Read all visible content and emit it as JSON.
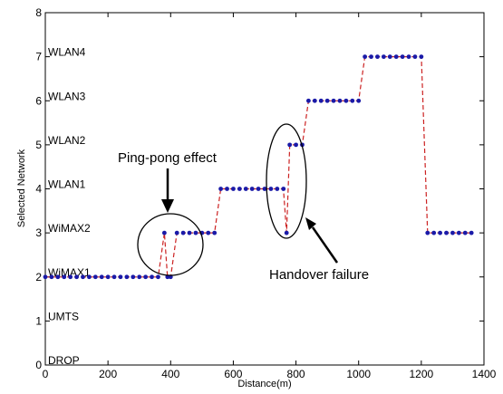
{
  "chart_data": {
    "type": "line",
    "xlabel": "Distance(m)",
    "ylabel": "Selected Network",
    "xlim": [
      0,
      1400
    ],
    "ylim": [
      0,
      8
    ],
    "xticks": [
      "0",
      "200",
      "400",
      "600",
      "800",
      "1000",
      "1200",
      "1400"
    ],
    "yticks": [
      "0",
      "1",
      "2",
      "3",
      "4",
      "5",
      "6",
      "7",
      "8"
    ],
    "network_labels": [
      "DROP",
      "UMTS",
      "WiMAX1",
      "WiMAX2",
      "WLAN1",
      "WLAN2",
      "WLAN3",
      "WLAN4"
    ],
    "grid": false,
    "colors": {
      "points": "#1a1aa8",
      "line": "#cc2222"
    },
    "series": [
      {
        "x": [
          0,
          20,
          40,
          60,
          80,
          100,
          120,
          140,
          160,
          180,
          200,
          220,
          240,
          260,
          280,
          300,
          320,
          340,
          360,
          380,
          390,
          400,
          420,
          440,
          460,
          480,
          500,
          520,
          540,
          560,
          580,
          600,
          620,
          640,
          660,
          680,
          700,
          720,
          740,
          760,
          770,
          780,
          800,
          820,
          840,
          860,
          880,
          900,
          920,
          940,
          960,
          980,
          1000,
          1020,
          1040,
          1060,
          1080,
          1100,
          1120,
          1140,
          1160,
          1180,
          1200,
          1220,
          1240,
          1260,
          1280,
          1300,
          1320,
          1340,
          1360
        ],
        "y": [
          2,
          2,
          2,
          2,
          2,
          2,
          2,
          2,
          2,
          2,
          2,
          2,
          2,
          2,
          2,
          2,
          2,
          2,
          2,
          3,
          2,
          2,
          3,
          3,
          3,
          3,
          3,
          3,
          3,
          4,
          4,
          4,
          4,
          4,
          4,
          4,
          4,
          4,
          4,
          4,
          3,
          5,
          5,
          5,
          6,
          6,
          6,
          6,
          6,
          6,
          6,
          6,
          6,
          7,
          7,
          7,
          7,
          7,
          7,
          7,
          7,
          7,
          7,
          3,
          3,
          3,
          3,
          3,
          3,
          3,
          3
        ]
      }
    ],
    "annotations": [
      {
        "text": "Ping-pong effect"
      },
      {
        "text": "Handover failure"
      }
    ]
  }
}
